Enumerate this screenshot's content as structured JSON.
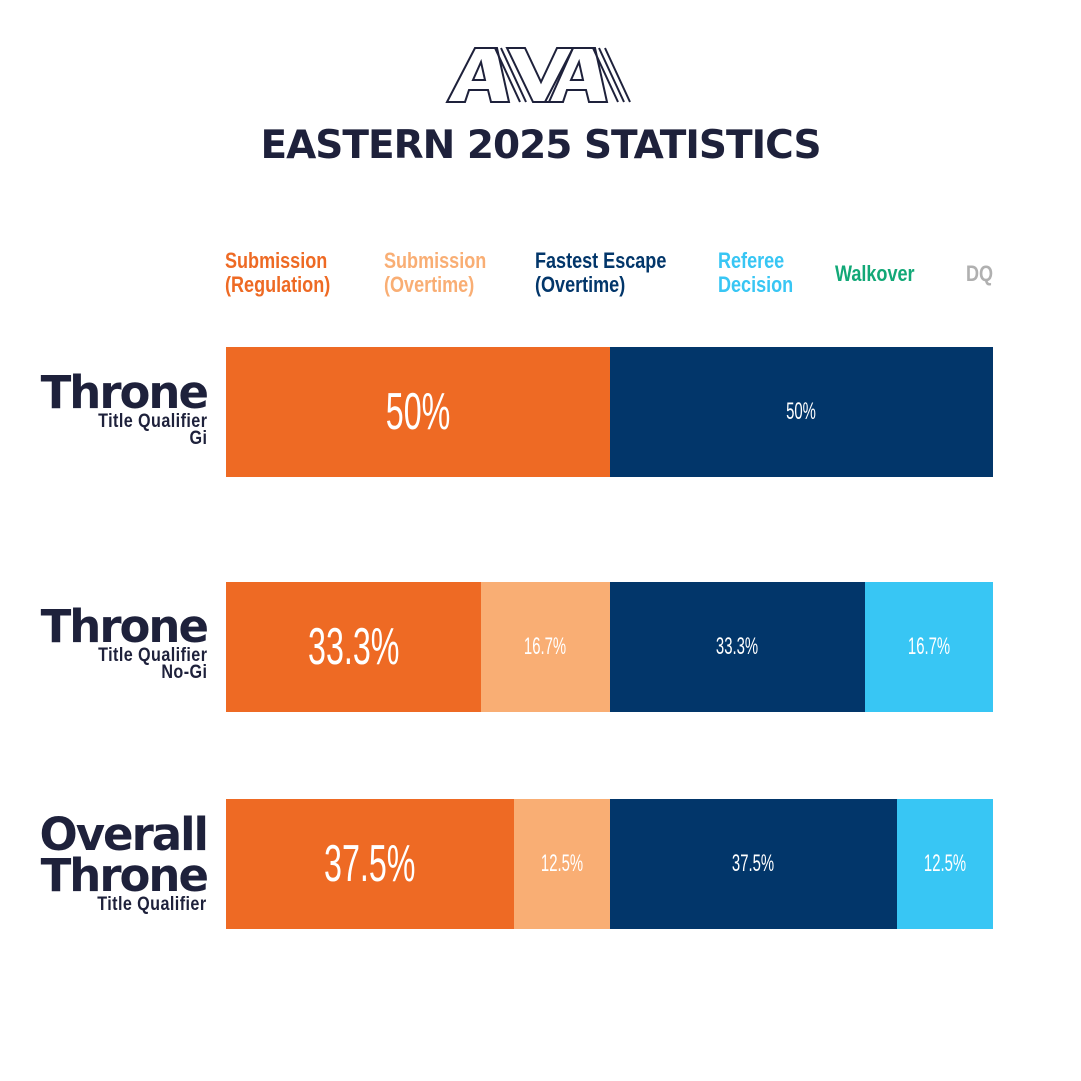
{
  "logo": {
    "text": "AVA",
    "color": "#1e213b"
  },
  "title": "EASTERN 2025 STATISTICS",
  "colors": {
    "submission_regulation": "#ee6a24",
    "submission_overtime": "#f9ae74",
    "fastest_escape_overtime": "#02366a",
    "referee_decision": "#38c6f4",
    "walkover": "#12a877",
    "dq": "#b0b0b0",
    "text_dark": "#1e213b"
  },
  "legend": [
    {
      "key": "submission_regulation",
      "line1": "Submission",
      "line2": "(Regulation)",
      "color": "#ee6a24"
    },
    {
      "key": "submission_overtime",
      "line1": "Submission",
      "line2": "(Overtime)",
      "color": "#f9ae74"
    },
    {
      "key": "fastest_escape_overtime",
      "line1": "Fastest Escape",
      "line2": "(Overtime)",
      "color": "#02366a"
    },
    {
      "key": "referee_decision",
      "line1": "Referee",
      "line2": "Decision",
      "color": "#38c6f4"
    },
    {
      "key": "walkover",
      "line1": "Walkover",
      "line2": "",
      "color": "#12a877"
    },
    {
      "key": "dq",
      "line1": "DQ",
      "line2": "",
      "color": "#b0b0b0"
    }
  ],
  "rows": [
    {
      "big": [
        "Throne"
      ],
      "small": [
        "Title Qualifier",
        "Gi"
      ]
    },
    {
      "big": [
        "Throne"
      ],
      "small": [
        "Title Qualifier",
        "No-Gi"
      ]
    },
    {
      "big": [
        "Overall",
        "Throne"
      ],
      "small": [
        "Title Qualifier"
      ]
    }
  ],
  "chart_data": {
    "type": "bar",
    "orientation": "horizontal",
    "stacked": true,
    "title": "EASTERN 2025 STATISTICS",
    "categories": [
      "Throne Title Qualifier Gi",
      "Throne Title Qualifier No-Gi",
      "Overall Throne Title Qualifier"
    ],
    "series": [
      {
        "name": "Submission (Regulation)",
        "color": "#ee6a24",
        "values": [
          50,
          33.3,
          37.5
        ],
        "labels": [
          "50%",
          "33.3%",
          "37.5%"
        ]
      },
      {
        "name": "Submission (Overtime)",
        "color": "#f9ae74",
        "values": [
          0,
          16.7,
          12.5
        ],
        "labels": [
          "",
          "16.7%",
          "12.5%"
        ]
      },
      {
        "name": "Fastest Escape (Overtime)",
        "color": "#02366a",
        "values": [
          50,
          33.3,
          37.5
        ],
        "labels": [
          "50%",
          "33.3%",
          "37.5%"
        ]
      },
      {
        "name": "Referee Decision",
        "color": "#38c6f4",
        "values": [
          0,
          16.7,
          12.5
        ],
        "labels": [
          "",
          "16.7%",
          "12.5%"
        ]
      },
      {
        "name": "Walkover",
        "color": "#12a877",
        "values": [
          0,
          0,
          0
        ],
        "labels": [
          "",
          "",
          ""
        ]
      },
      {
        "name": "DQ",
        "color": "#b0b0b0",
        "values": [
          0,
          0,
          0
        ],
        "labels": [
          "",
          "",
          ""
        ]
      }
    ],
    "xlim": [
      0,
      100
    ],
    "unit": "%",
    "grid": false,
    "legend_position": "top"
  }
}
